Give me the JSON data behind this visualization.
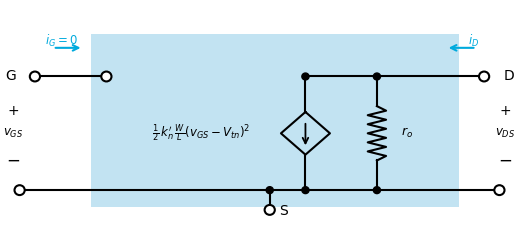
{
  "fig_width": 5.19,
  "fig_height": 2.36,
  "dpi": 100,
  "cyan_color": "#00aadd",
  "black": "#000000",
  "label_G": "G",
  "label_D": "D",
  "label_S": "S",
  "label_iG": "$i_G = 0$",
  "label_iD": "$i_D$",
  "label_vGS": "$v_{GS}$",
  "label_vDS": "$v_{DS}$",
  "label_ro": "$r_o$",
  "label_plus": "+",
  "label_minus": "−",
  "formula": "$\\frac{1}{2}\\, k_n^{\\prime}\\, \\frac{W}{L}(v_{GS} - V_{tn})^2$"
}
